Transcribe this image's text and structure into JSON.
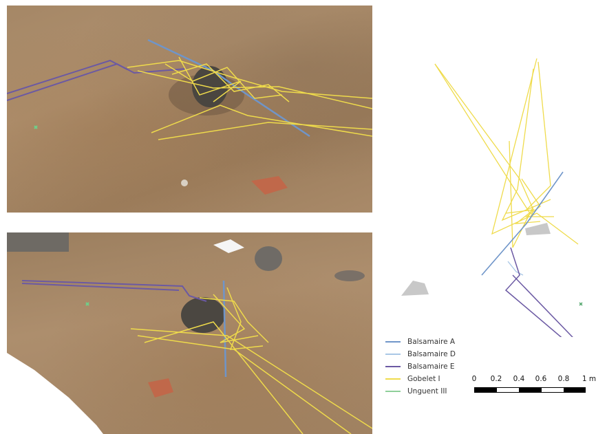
{
  "colors": {
    "balsamaire_a": "#6f95c9",
    "balsamaire_d": "#a9c7e6",
    "balsamaire_e": "#6b59a3",
    "gobelet_i": "#efdb4b",
    "unguent_iii": "#8fcf9a",
    "stone": "#c8c8c8"
  },
  "legend": [
    {
      "label": "Balsamaire A",
      "color": "#6f95c9"
    },
    {
      "label": "Balsamaire D",
      "color": "#a9c7e6"
    },
    {
      "label": "Balsamaire E",
      "color": "#6b59a3"
    },
    {
      "label": "Gobelet I",
      "color": "#efdb4b"
    },
    {
      "label": "Unguent III",
      "color": "#8fcf9a"
    }
  ],
  "scale": {
    "ticks": [
      "0",
      "0.2",
      "0.4",
      "0.6",
      "0.8",
      "1 m"
    ]
  }
}
